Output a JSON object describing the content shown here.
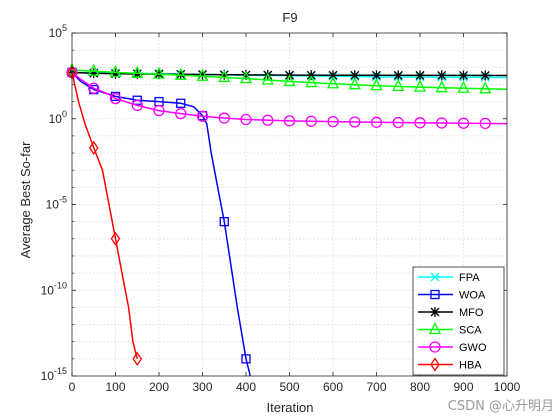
{
  "chart_data": {
    "type": "line",
    "title": "F9",
    "xlabel": "Iteration",
    "ylabel": "Average Best So-far",
    "xlim": [
      0,
      1000
    ],
    "ylim": [
      1e-15,
      100000.0
    ],
    "yscale": "log",
    "grid": true,
    "legend_position": "bottom-right",
    "x_ticks": [
      0,
      100,
      200,
      300,
      400,
      500,
      600,
      700,
      800,
      900,
      1000
    ],
    "y_ticks": [
      {
        "base": "10",
        "exp": "-15",
        "value": 1e-15
      },
      {
        "base": "10",
        "exp": "-10",
        "value": 1e-10
      },
      {
        "base": "10",
        "exp": "-5",
        "value": 1e-05
      },
      {
        "base": "10",
        "exp": "0",
        "value": 1
      },
      {
        "base": "10",
        "exp": "5",
        "value": 100000.0
      }
    ],
    "series": [
      {
        "name": "FPA",
        "color": "#00ffff",
        "marker": "x",
        "x": [
          0,
          50,
          100,
          200,
          300,
          400,
          500,
          600,
          700,
          800,
          900,
          1000
        ],
        "y": [
          500,
          480,
          460,
          420,
          380,
          340,
          320,
          300,
          280,
          270,
          260,
          255
        ]
      },
      {
        "name": "WOA",
        "color": "#0000ff",
        "marker": "square",
        "x": [
          0,
          20,
          50,
          100,
          150,
          200,
          250,
          280,
          300,
          310,
          320,
          335,
          350,
          380,
          400,
          410
        ],
        "y": [
          500,
          150,
          50,
          20,
          12,
          10,
          8,
          5,
          1.5,
          0.5,
          0.01,
          0.0001,
          1e-06,
          1e-11,
          1e-14,
          1e-15
        ]
      },
      {
        "name": "MFO",
        "color": "#000000",
        "marker": "star",
        "x": [
          0,
          50,
          100,
          200,
          300,
          400,
          500,
          600,
          700,
          800,
          900,
          1000
        ],
        "y": [
          500,
          450,
          420,
          400,
          380,
          360,
          350,
          345,
          340,
          338,
          335,
          333
        ]
      },
      {
        "name": "SCA",
        "color": "#00ff00",
        "marker": "triangle",
        "x": [
          0,
          50,
          100,
          200,
          300,
          400,
          500,
          600,
          700,
          800,
          900,
          1000
        ],
        "y": [
          700,
          600,
          500,
          400,
          300,
          220,
          150,
          110,
          85,
          70,
          60,
          52
        ]
      },
      {
        "name": "GWO",
        "color": "#ff00ff",
        "marker": "circle",
        "x": [
          0,
          20,
          50,
          80,
          100,
          150,
          200,
          250,
          300,
          350,
          400,
          500,
          600,
          700,
          800,
          900,
          1000
        ],
        "y": [
          500,
          200,
          60,
          30,
          15,
          6,
          3,
          2,
          1.4,
          1.1,
          0.9,
          0.75,
          0.68,
          0.62,
          0.58,
          0.55,
          0.52
        ]
      },
      {
        "name": "HBA",
        "color": "#ff0000",
        "marker": "diamond",
        "x": [
          0,
          15,
          30,
          50,
          70,
          85,
          100,
          115,
          130,
          140,
          150
        ],
        "y": [
          500,
          10,
          0.5,
          0.02,
          0.001,
          1e-05,
          1e-07,
          1e-09,
          1e-11,
          1e-13,
          1e-14
        ]
      }
    ]
  },
  "watermark": "CSDN @心升明月"
}
